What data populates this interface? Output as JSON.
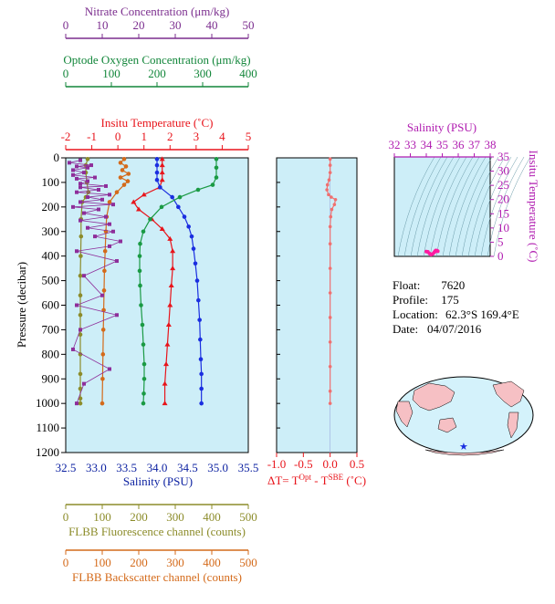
{
  "info": {
    "float_label": "Float:",
    "float": "7620",
    "profile_label": "Profile:",
    "profile": "175",
    "location_label": "Location:",
    "location": "62.3°S 169.4°E",
    "date_label": "Date:",
    "date": "04/07/2016"
  },
  "chart_data": [
    {
      "type": "line",
      "ylabel": "Pressure (decibar)",
      "ylim": [
        1200,
        0
      ],
      "yticks": [
        0,
        100,
        200,
        300,
        400,
        500,
        600,
        700,
        800,
        900,
        1000,
        1100,
        1200
      ],
      "axes": [
        {
          "key": "nitrate",
          "label": "Nitrate Concentration (μm/kg)",
          "color": "#7b2d8e",
          "lim": [
            0,
            50
          ],
          "ticks": [
            0,
            10,
            20,
            30,
            40,
            50
          ],
          "position": "top"
        },
        {
          "key": "oxygen",
          "label": "Optode Oxygen Concentration (μm/kg)",
          "color": "#12863a",
          "lim": [
            0,
            400
          ],
          "ticks": [
            0,
            100,
            200,
            300,
            400
          ],
          "position": "top"
        },
        {
          "key": "temperature",
          "label": "Insitu Temperature (˚C)",
          "color": "#e8141b",
          "lim": [
            -2,
            5
          ],
          "ticks": [
            -2,
            -1,
            0,
            1,
            2,
            3,
            4,
            5
          ],
          "position": "top"
        },
        {
          "key": "salinity",
          "label": "Salinity (PSU)",
          "color": "#0a1fa0",
          "lim": [
            32.5,
            35.5
          ],
          "ticks": [
            "32.5",
            "33.0",
            "33.5",
            "34.0",
            "34.5",
            "35.0",
            "35.5"
          ],
          "position": "bottom"
        },
        {
          "key": "fluorescence",
          "label": "FLBB Fluorescence channel (counts)",
          "color": "#8c8c2a",
          "lim": [
            0,
            500
          ],
          "ticks": [
            0,
            100,
            200,
            300,
            400,
            500
          ],
          "position": "bottom"
        },
        {
          "key": "backscatter",
          "label": "FLBB Backscatter channel (counts)",
          "color": "#d46a1a",
          "lim": [
            0,
            500
          ],
          "ticks": [
            0,
            100,
            200,
            300,
            400,
            500
          ],
          "position": "bottom"
        }
      ],
      "series": [
        {
          "key": "temperature",
          "color": "#e8141b",
          "marker": "triangle",
          "x": [
            1.7,
            1.7,
            1.7,
            1.7,
            1.6,
            1.0,
            0.6,
            0.8,
            1.3,
            1.7,
            2.0,
            2.1,
            2.1,
            2.05,
            2.0,
            1.95,
            1.9,
            1.85,
            1.8,
            1.8
          ],
          "y": [
            5,
            30,
            60,
            90,
            120,
            150,
            180,
            210,
            250,
            290,
            330,
            380,
            450,
            520,
            600,
            680,
            760,
            840,
            920,
            1000
          ]
        },
        {
          "key": "salinity",
          "color": "#1a2ee0",
          "marker": "circle",
          "x": [
            34.0,
            34.0,
            34.0,
            34.0,
            34.05,
            34.25,
            34.35,
            34.45,
            34.52,
            34.57,
            34.6,
            34.63,
            34.66,
            34.68,
            34.7,
            34.71,
            34.72,
            34.73,
            34.73,
            34.73
          ],
          "y": [
            5,
            30,
            60,
            90,
            120,
            160,
            200,
            240,
            280,
            320,
            370,
            430,
            500,
            580,
            660,
            740,
            820,
            880,
            940,
            1000
          ]
        },
        {
          "key": "oxygen",
          "color": "#1a9a44",
          "marker": "circle",
          "x": [
            330,
            330,
            330,
            322,
            290,
            250,
            210,
            185,
            170,
            163,
            162,
            162,
            163,
            165,
            168,
            170,
            172,
            172,
            171,
            170
          ],
          "y": [
            5,
            40,
            80,
            110,
            130,
            160,
            200,
            250,
            300,
            350,
            400,
            460,
            520,
            600,
            680,
            760,
            840,
            900,
            960,
            1000
          ]
        },
        {
          "key": "fluorescence",
          "color": "#8c8c2a",
          "marker": "circle",
          "x": [
            60,
            55,
            55,
            58,
            62,
            55,
            45,
            42,
            42,
            41,
            40,
            40,
            40,
            40,
            40,
            40,
            40,
            40,
            40
          ],
          "y": [
            5,
            30,
            60,
            100,
            140,
            160,
            180,
            250,
            320,
            400,
            480,
            560,
            640,
            720,
            800,
            880,
            940,
            980,
            1000
          ]
        },
        {
          "key": "backscatter",
          "color": "#d46a1a",
          "marker": "circle",
          "x": [
            160,
            150,
            165,
            155,
            172,
            150,
            170,
            160,
            140,
            120,
            112,
            110,
            108,
            106,
            105,
            104,
            103,
            102,
            101,
            100
          ],
          "y": [
            5,
            20,
            35,
            50,
            65,
            80,
            95,
            110,
            140,
            180,
            240,
            300,
            380,
            460,
            540,
            620,
            700,
            800,
            900,
            1000
          ]
        },
        {
          "key": "nitrate",
          "color": "#8e2e9a",
          "marker": "square",
          "x": [
            4,
            1,
            7,
            3,
            6,
            2,
            5,
            2,
            8,
            3,
            6,
            4,
            11,
            4,
            9,
            3,
            12,
            6,
            10,
            4,
            13,
            2,
            9,
            5,
            11,
            4,
            12,
            6,
            13,
            8,
            15,
            12,
            3,
            14,
            5,
            10,
            3,
            14,
            4,
            2,
            12,
            5,
            3
          ],
          "y": [
            10,
            20,
            30,
            35,
            40,
            50,
            60,
            70,
            80,
            85,
            95,
            105,
            115,
            120,
            130,
            140,
            150,
            160,
            170,
            180,
            190,
            200,
            210,
            225,
            240,
            255,
            270,
            285,
            300,
            320,
            340,
            360,
            380,
            420,
            480,
            560,
            600,
            640,
            700,
            780,
            860,
            920,
            1000
          ]
        }
      ]
    },
    {
      "type": "line",
      "xlabel": "ΔT= T",
      "xlabel_sup1": "Opt",
      "xlabel_mid": " - T",
      "xlabel_sup2": "SBE",
      "xlabel_tail": " (˚C)",
      "xlim": [
        -1.0,
        0.5
      ],
      "xticks": [
        "-1.0",
        "-0.5",
        "0.0",
        "0.5"
      ],
      "ylim": [
        1200,
        0
      ],
      "series": [
        {
          "key": "dt",
          "color": "#f07070",
          "x": [
            0.0,
            0.0,
            0.0,
            -0.02,
            -0.05,
            -0.06,
            -0.03,
            0.02,
            0.1,
            0.08,
            0.03,
            0.01,
            0.0,
            0.0,
            0.0,
            0.0,
            0.0,
            0.0,
            0.0,
            0.0,
            0.0
          ],
          "y": [
            5,
            30,
            60,
            90,
            110,
            130,
            150,
            160,
            170,
            190,
            210,
            240,
            280,
            350,
            450,
            550,
            650,
            750,
            850,
            950,
            1000
          ]
        }
      ]
    },
    {
      "type": "scatter",
      "title": "Salinity (PSU)",
      "xlim": [
        32,
        38
      ],
      "xticks": [
        32,
        33,
        34,
        35,
        36,
        37,
        38
      ],
      "ylabel": "Insitu Temperature (˚C)",
      "ylim": [
        0,
        35
      ],
      "yticks": [
        0,
        5,
        10,
        15,
        20,
        25,
        30,
        35
      ],
      "color": "#ff1aa0",
      "x": [
        34.0,
        34.1,
        34.2,
        34.3,
        34.4,
        34.5,
        34.55,
        34.6,
        34.65,
        34.7,
        34.72
      ],
      "y": [
        1.7,
        1.6,
        1.0,
        0.6,
        0.9,
        1.4,
        1.8,
        2.1,
        2.0,
        1.9,
        1.8
      ]
    }
  ]
}
